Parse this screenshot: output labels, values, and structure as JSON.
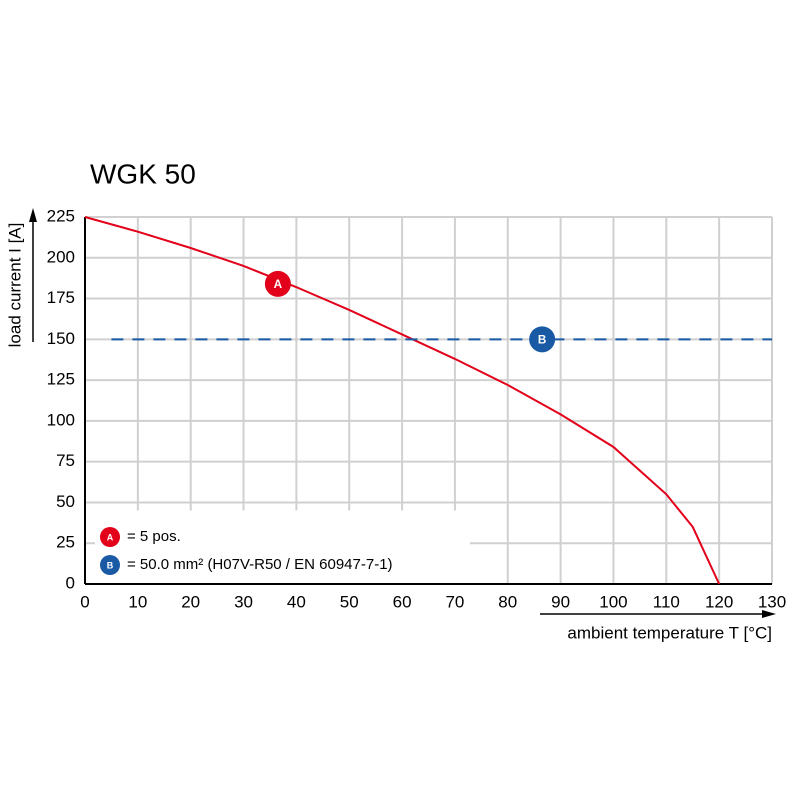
{
  "chart_data": {
    "type": "line",
    "title": "WGK 50",
    "x_label": "ambient temperature T [°C]",
    "y_label": "load current I [A]",
    "series": [
      {
        "name": "= 5 pos.",
        "marker_label": "A",
        "color": "#e2001a",
        "dash": false,
        "x": [
          0,
          10,
          20,
          30,
          40,
          50,
          60,
          70,
          80,
          90,
          100,
          110,
          115,
          120
        ],
        "values": [
          225,
          216,
          206,
          195,
          182,
          168,
          153,
          138,
          122,
          104,
          84,
          55,
          35,
          0
        ],
        "marker_x": 36.5,
        "marker_y": 184
      },
      {
        "name": "= 50.0 mm² (H07V-R50 / EN 60947-7-1)",
        "marker_label": "B",
        "color": "#1a5aa5",
        "dash": true,
        "x": [
          5,
          130
        ],
        "values": [
          150,
          150
        ],
        "marker_x": 86.5,
        "marker_y": 150
      }
    ],
    "xlim": [
      0,
      130
    ],
    "xticks": [
      0,
      10,
      20,
      30,
      40,
      50,
      60,
      70,
      80,
      90,
      100,
      110,
      120,
      130
    ],
    "ylim": [
      0,
      225
    ],
    "yticks": [
      0,
      25,
      50,
      75,
      100,
      125,
      150,
      175,
      200,
      225
    ],
    "grid": true,
    "legend": "lower left"
  }
}
